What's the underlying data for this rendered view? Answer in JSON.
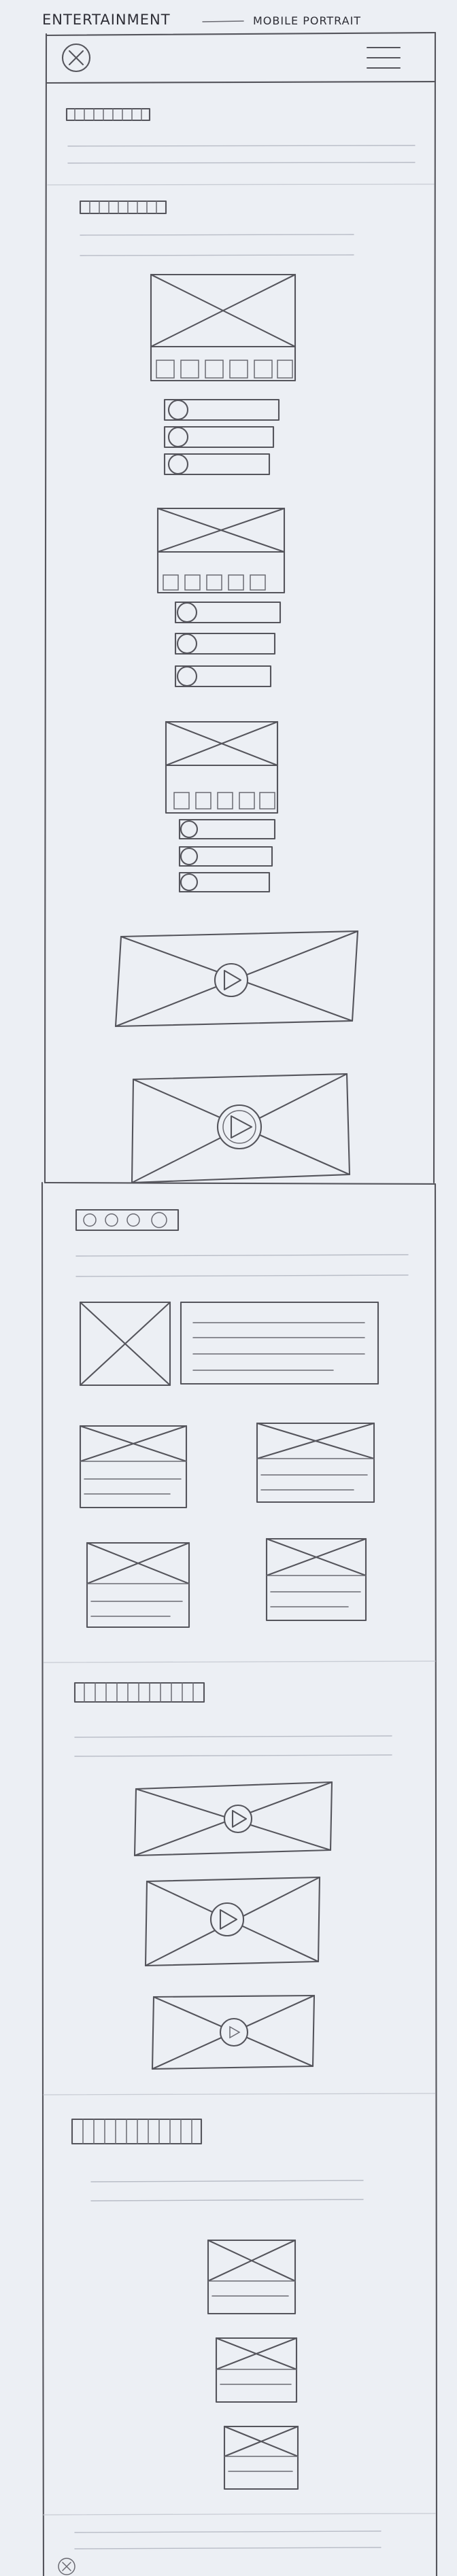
{
  "sketch": {
    "title_main": "ENTERTAINMENT",
    "title_sub": "MOBILE PORTRAIT"
  },
  "icons": {
    "close": "circle-x-icon",
    "menu": "hamburger-menu-icon",
    "play": "play-icon",
    "image_placeholder": "crossed-box-image-icon"
  }
}
